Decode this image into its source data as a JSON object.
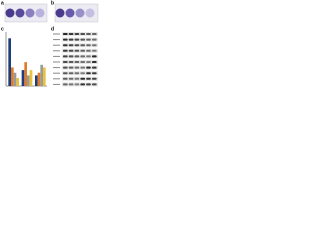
{
  "panels": [
    {
      "label": "a"
    },
    {
      "label": "b"
    },
    {
      "label": "c",
      "chart": {
        "type": "bar",
        "categories": [
          null,
          null,
          null
        ],
        "ylim": [
          0,
          100
        ],
        "series": [
          {
            "color": "#1f3d7a",
            "values": [
              90,
              30,
              20
            ]
          },
          {
            "color": "#e07b2a",
            "values": [
              35,
              45,
              25
            ]
          },
          {
            "color": "#9a9a9a",
            "values": [
              25,
              20,
              40
            ]
          },
          {
            "color": "#e8c23a",
            "values": [
              15,
              30,
              35
            ]
          }
        ]
      }
    },
    {
      "label": "d"
    }
  ]
}
